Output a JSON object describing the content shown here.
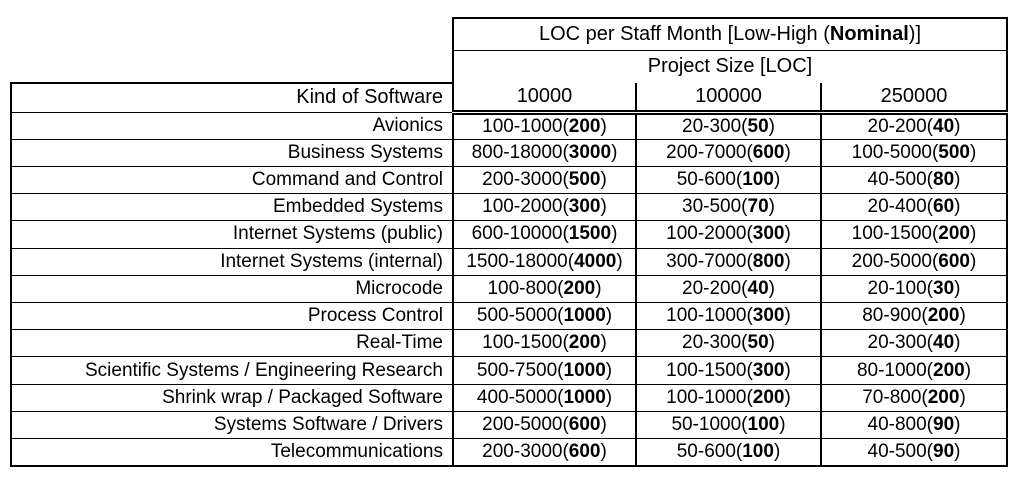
{
  "header": {
    "title_prefix": "LOC per Staff Month [Low-High (",
    "title_bold": "Nominal",
    "title_suffix": ")]",
    "subtitle": "Project Size [LOC]",
    "row_header": "Kind of Software",
    "sizes": [
      "10000",
      "100000",
      "250000"
    ]
  },
  "chart_data": {
    "type": "table",
    "title": "LOC per Staff Month [Low-High (Nominal)]",
    "columns": [
      "Kind of Software",
      "10000",
      "100000",
      "250000"
    ],
    "rows": [
      [
        "Avionics",
        "100-1000(200)",
        "20-300(50)",
        "20-200(40)"
      ],
      [
        "Business Systems",
        "800-18000(3000)",
        "200-7000(600)",
        "100-5000(500)"
      ],
      [
        "Command and Control",
        "200-3000(500)",
        "50-600(100)",
        "40-500(80)"
      ],
      [
        "Embedded Systems",
        "100-2000(300)",
        "30-500(70)",
        "20-400(60)"
      ],
      [
        "Internet Systems (public)",
        "600-10000(1500)",
        "100-2000(300)",
        "100-1500(200)"
      ],
      [
        "Internet Systems (internal)",
        "1500-18000(4000)",
        "300-7000(800)",
        "200-5000(600)"
      ],
      [
        "Microcode",
        "100-800(200)",
        "20-200(40)",
        "20-100(30)"
      ],
      [
        "Process Control",
        "500-5000(1000)",
        "100-1000(300)",
        "80-900(200)"
      ],
      [
        "Real-Time",
        "100-1500(200)",
        "20-300(50)",
        "20-300(40)"
      ],
      [
        "Scientific Systems / Engineering Research",
        "500-7500(1000)",
        "100-1500(300)",
        "80-1000(200)"
      ],
      [
        "Shrink wrap / Packaged Software",
        "400-5000(1000)",
        "100-1000(200)",
        "70-800(200)"
      ],
      [
        "Systems Software / Drivers",
        "200-5000(600)",
        "50-1000(100)",
        "40-800(90)"
      ],
      [
        "Telecommunications",
        "200-3000(600)",
        "50-600(100)",
        "40-500(90)"
      ]
    ]
  },
  "rows": [
    {
      "label": "Avionics",
      "cells": [
        {
          "range": "100-1000",
          "nominal": "200"
        },
        {
          "range": "20-300",
          "nominal": "50"
        },
        {
          "range": "20-200",
          "nominal": "40"
        }
      ]
    },
    {
      "label": "Business Systems",
      "cells": [
        {
          "range": "800-18000",
          "nominal": "3000"
        },
        {
          "range": "200-7000",
          "nominal": "600"
        },
        {
          "range": "100-5000",
          "nominal": "500"
        }
      ]
    },
    {
      "label": "Command and Control",
      "cells": [
        {
          "range": "200-3000",
          "nominal": "500"
        },
        {
          "range": "50-600",
          "nominal": "100"
        },
        {
          "range": "40-500",
          "nominal": "80"
        }
      ]
    },
    {
      "label": "Embedded Systems",
      "cells": [
        {
          "range": "100-2000",
          "nominal": "300"
        },
        {
          "range": "30-500",
          "nominal": "70"
        },
        {
          "range": "20-400",
          "nominal": "60"
        }
      ]
    },
    {
      "label": "Internet Systems (public)",
      "cells": [
        {
          "range": "600-10000",
          "nominal": "1500"
        },
        {
          "range": "100-2000",
          "nominal": "300"
        },
        {
          "range": "100-1500",
          "nominal": "200"
        }
      ]
    },
    {
      "label": "Internet Systems (internal)",
      "cells": [
        {
          "range": "1500-18000",
          "nominal": "4000"
        },
        {
          "range": "300-7000",
          "nominal": "800"
        },
        {
          "range": "200-5000",
          "nominal": "600"
        }
      ]
    },
    {
      "label": "Microcode",
      "cells": [
        {
          "range": "100-800",
          "nominal": "200"
        },
        {
          "range": "20-200",
          "nominal": "40"
        },
        {
          "range": "20-100",
          "nominal": "30"
        }
      ]
    },
    {
      "label": "Process Control",
      "cells": [
        {
          "range": "500-5000",
          "nominal": "1000"
        },
        {
          "range": "100-1000",
          "nominal": "300"
        },
        {
          "range": "80-900",
          "nominal": "200"
        }
      ]
    },
    {
      "label": "Real-Time",
      "cells": [
        {
          "range": "100-1500",
          "nominal": "200"
        },
        {
          "range": "20-300",
          "nominal": "50"
        },
        {
          "range": "20-300",
          "nominal": "40"
        }
      ]
    },
    {
      "label": "Scientific Systems / Engineering Research",
      "cells": [
        {
          "range": "500-7500",
          "nominal": "1000"
        },
        {
          "range": "100-1500",
          "nominal": "300"
        },
        {
          "range": "80-1000",
          "nominal": "200"
        }
      ]
    },
    {
      "label": "Shrink wrap / Packaged Software",
      "cells": [
        {
          "range": "400-5000",
          "nominal": "1000"
        },
        {
          "range": "100-1000",
          "nominal": "200"
        },
        {
          "range": "70-800",
          "nominal": "200"
        }
      ]
    },
    {
      "label": "Systems Software / Drivers",
      "cells": [
        {
          "range": "200-5000",
          "nominal": "600"
        },
        {
          "range": "50-1000",
          "nominal": "100"
        },
        {
          "range": "40-800",
          "nominal": "90"
        }
      ]
    },
    {
      "label": "Telecommunications",
      "cells": [
        {
          "range": "200-3000",
          "nominal": "600"
        },
        {
          "range": "50-600",
          "nominal": "100"
        },
        {
          "range": "40-500",
          "nominal": "90"
        }
      ]
    }
  ]
}
